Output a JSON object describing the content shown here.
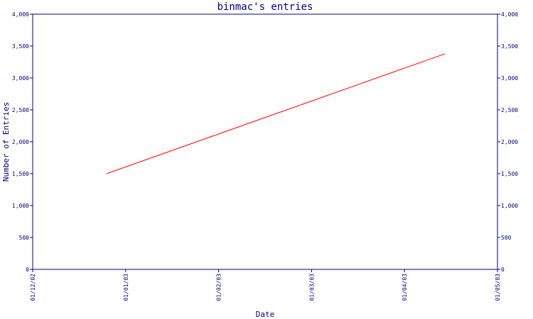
{
  "chart_data": {
    "type": "line",
    "title": "binmac's entries",
    "xlabel": "Date",
    "ylabel": "Number of Entries",
    "x_ticks": [
      "01/12/02",
      "01/01/03",
      "01/02/03",
      "01/03/03",
      "01/04/03",
      "01/05/03"
    ],
    "y_ticks": [
      "0",
      "500",
      "1,000",
      "1,500",
      "2,000",
      "2,500",
      "3,000",
      "3,500",
      "4,000"
    ],
    "ylim": [
      0,
      4000
    ],
    "xlim": [
      "2002-12-01",
      "2003-05-01"
    ],
    "y_axis_right": true,
    "grid": false,
    "series": [
      {
        "color": "#ff0000",
        "x": [
          "2002-12-25",
          "2003-04-14"
        ],
        "y": [
          1500,
          3380
        ]
      }
    ]
  }
}
